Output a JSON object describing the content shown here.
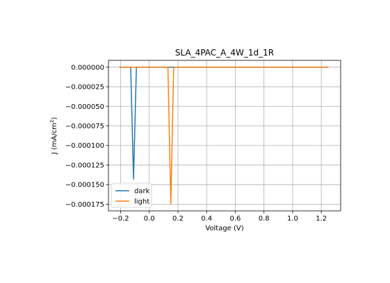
{
  "chart_data": {
    "type": "line",
    "title": "SLA_4PAC_A_4W_1d_1R",
    "xlabel": "Voltage (V)",
    "ylabel_main": "J (mA/cm",
    "ylabel_sup": "2",
    "ylabel_close": ")",
    "xlim": [
      -0.285,
      1.335
    ],
    "ylim": [
      -0.0001835,
      8.7e-06
    ],
    "grid": true,
    "legend_position": "lower-left",
    "xticks": [
      {
        "value": -0.2,
        "label": "−0.2"
      },
      {
        "value": 0.0,
        "label": "0.0"
      },
      {
        "value": 0.2,
        "label": "0.2"
      },
      {
        "value": 0.4,
        "label": "0.4"
      },
      {
        "value": 0.6,
        "label": "0.6"
      },
      {
        "value": 0.8,
        "label": "0.8"
      },
      {
        "value": 1.0,
        "label": "1.0"
      },
      {
        "value": 1.2,
        "label": "1.2"
      }
    ],
    "yticks": [
      {
        "value": 0.0,
        "label": "0.000000"
      },
      {
        "value": -2.5e-05,
        "label": "−0.000025"
      },
      {
        "value": -5e-05,
        "label": "−0.000050"
      },
      {
        "value": -7.5e-05,
        "label": "−0.000075"
      },
      {
        "value": -0.0001,
        "label": "−0.000100"
      },
      {
        "value": -0.000125,
        "label": "−0.000125"
      },
      {
        "value": -0.00015,
        "label": "−0.000150"
      },
      {
        "value": -0.000175,
        "label": "−0.000175"
      }
    ],
    "series": [
      {
        "name": "dark",
        "color": "#1f77b4",
        "x": [
          -0.21,
          -0.14,
          -0.13,
          -0.11,
          -0.09,
          -0.08,
          1.25
        ],
        "y": [
          0,
          0,
          0,
          -0.000143,
          0,
          0,
          0
        ]
      },
      {
        "name": "light",
        "color": "#ff7f0e",
        "x": [
          -0.21,
          0.12,
          0.13,
          0.15,
          0.17,
          0.18,
          1.25
        ],
        "y": [
          0,
          0,
          0,
          -0.000175,
          0,
          0,
          0
        ]
      }
    ]
  }
}
